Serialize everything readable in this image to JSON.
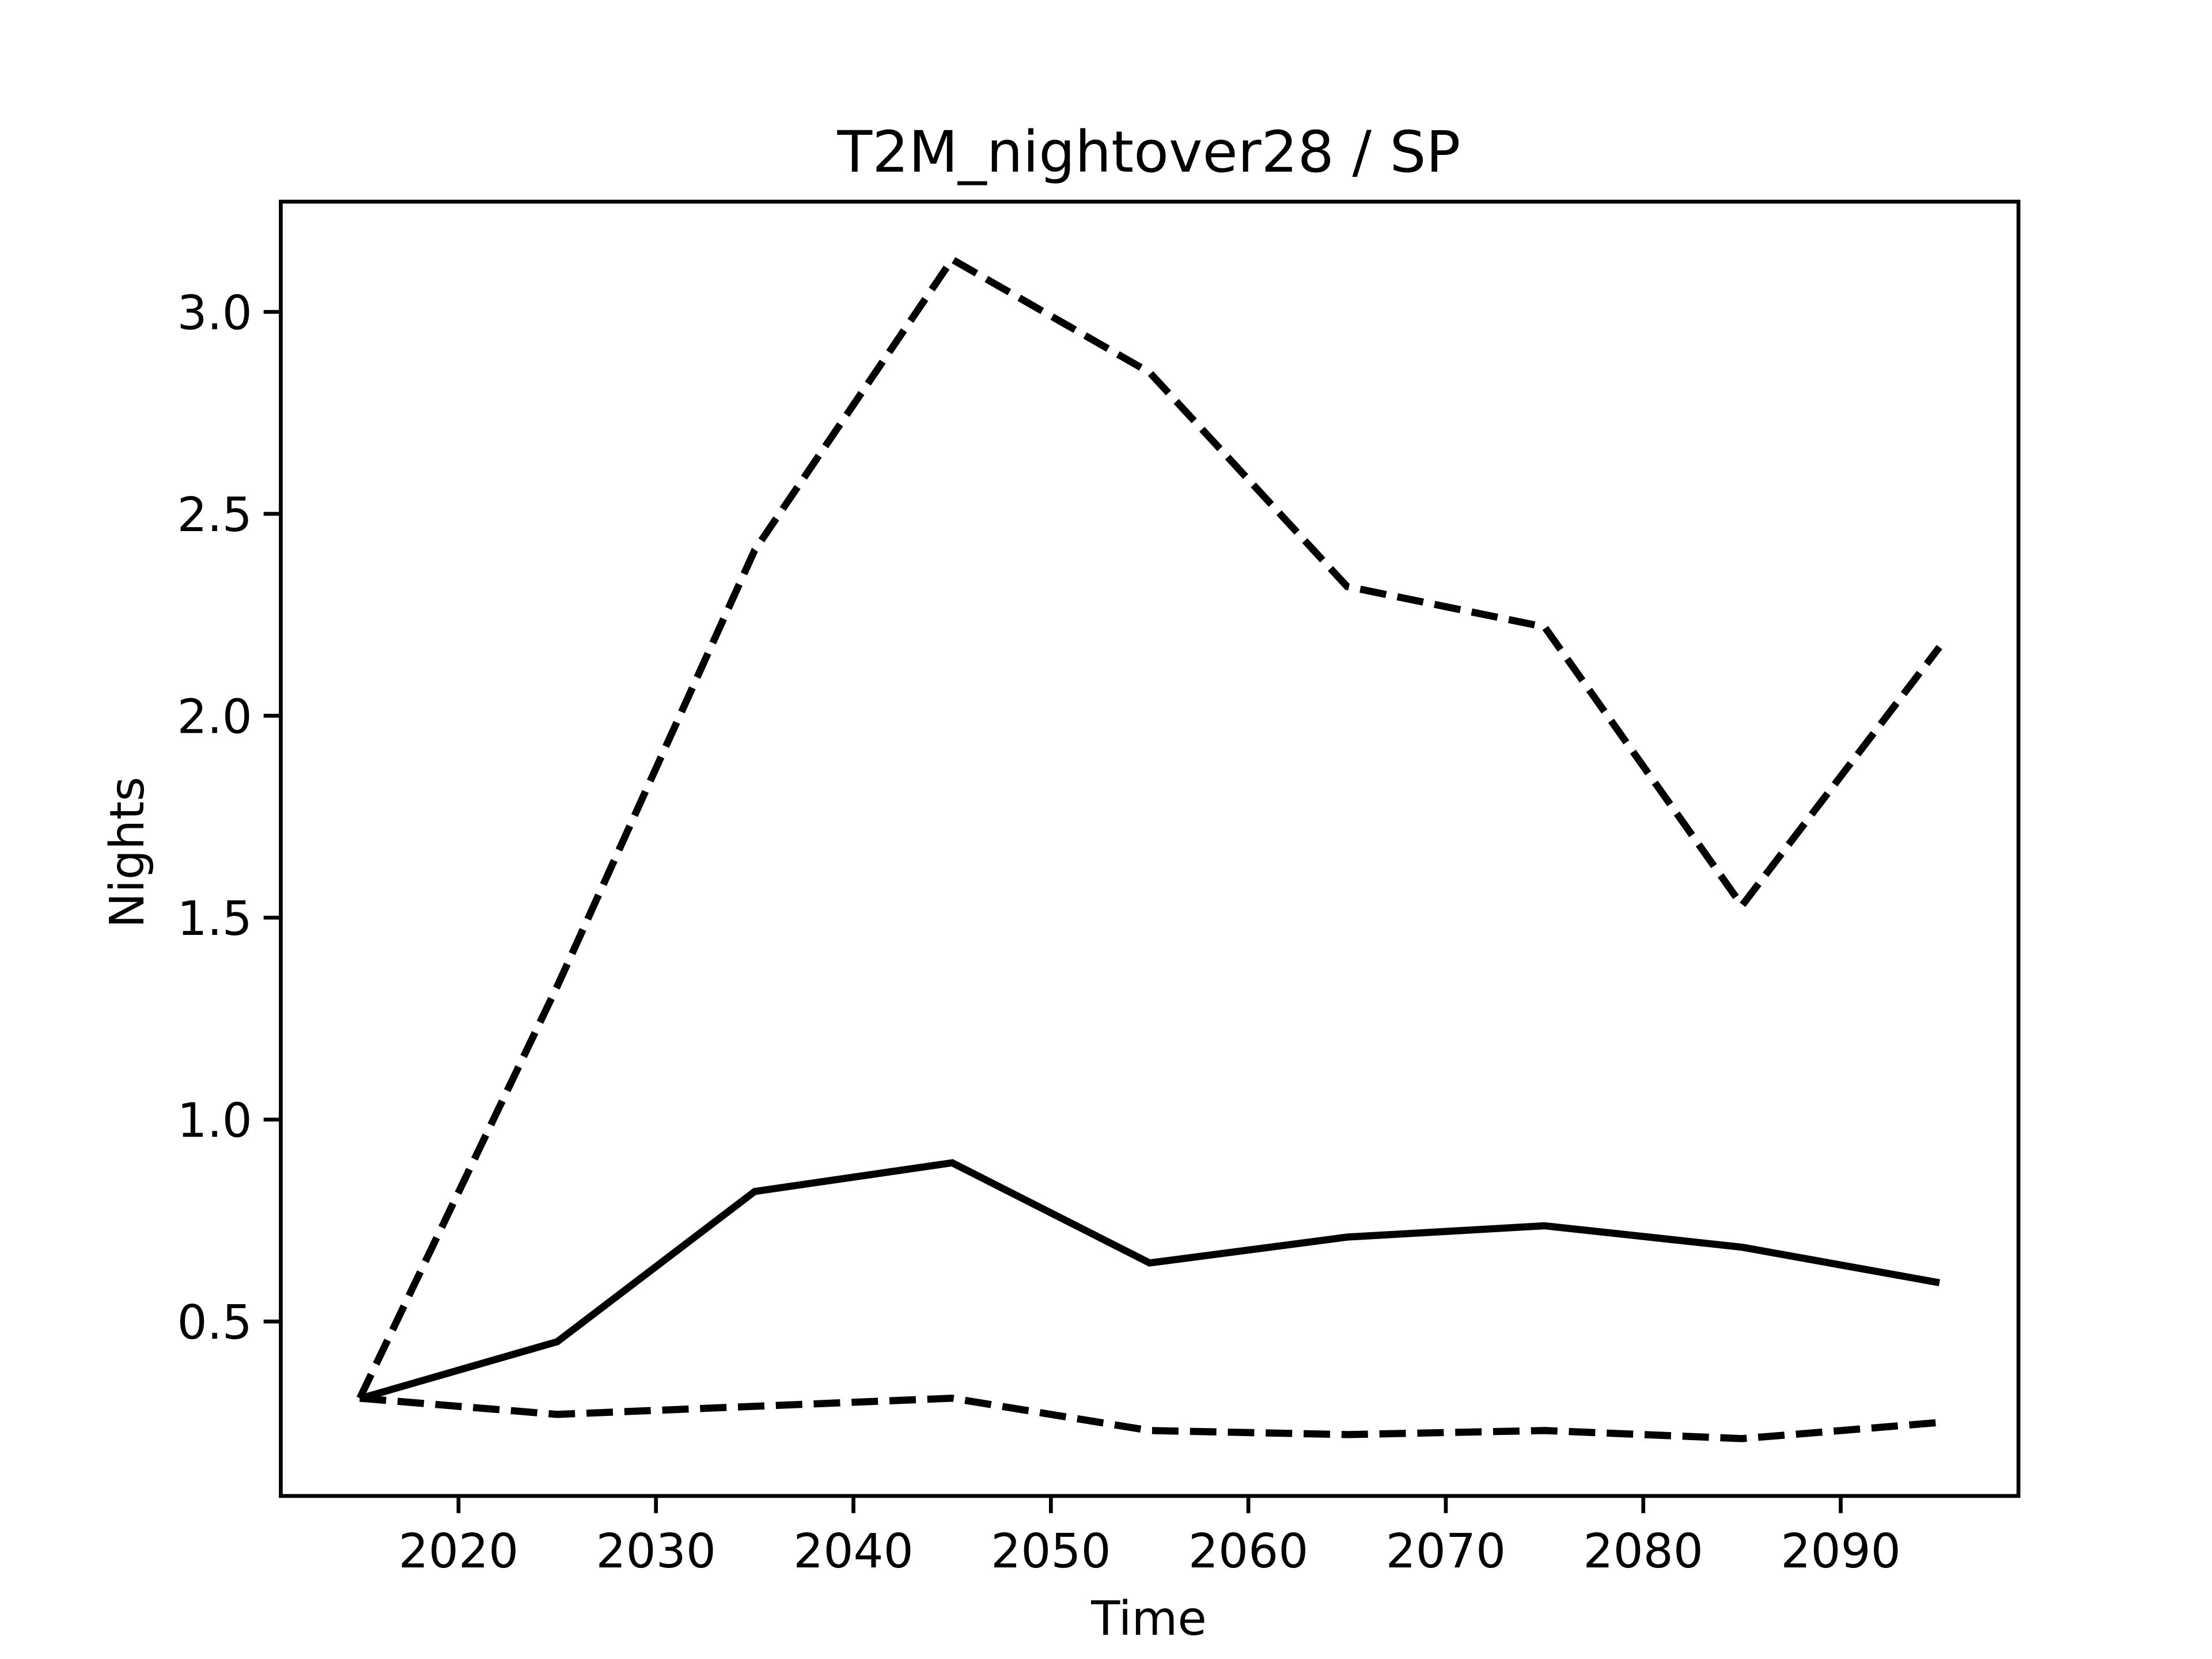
{
  "chart_data": {
    "type": "line",
    "title": "T2M_nightover28 / SP",
    "x_label": "Time",
    "y_label": "Nights",
    "x": [
      2015,
      2025,
      2035,
      2045,
      2055,
      2065,
      2075,
      2085,
      2095
    ],
    "series": [
      {
        "color": "#000000",
        "dashed": true,
        "values": [
          0.31,
          1.33,
          2.41,
          3.13,
          2.85,
          2.32,
          2.22,
          1.53,
          2.17
        ]
      },
      {
        "color": "#000000",
        "dashed": false,
        "values": [
          0.309,
          0.45,
          0.822,
          0.893,
          0.645,
          0.709,
          0.737,
          0.684,
          0.596
        ]
      },
      {
        "color": "#000000",
        "dashed": true,
        "values": [
          0.31,
          0.27,
          0.29,
          0.31,
          0.23,
          0.22,
          0.23,
          0.21,
          0.25
        ]
      }
    ],
    "xlim": [
      2011,
      2099
    ],
    "xticks": [
      2020,
      2030,
      2040,
      2050,
      2060,
      2070,
      2080,
      2090
    ],
    "ylim": [
      0.068,
      3.273
    ],
    "yticks": [
      {
        "value": 0.5,
        "label": "0.5"
      },
      {
        "value": 1.0,
        "label": "1.0"
      },
      {
        "value": 1.5,
        "label": "1.5"
      },
      {
        "value": 2.0,
        "label": "2.0"
      },
      {
        "value": 2.5,
        "label": "2.5"
      },
      {
        "value": 3.0,
        "label": "3.0"
      }
    ],
    "grid": false
  }
}
